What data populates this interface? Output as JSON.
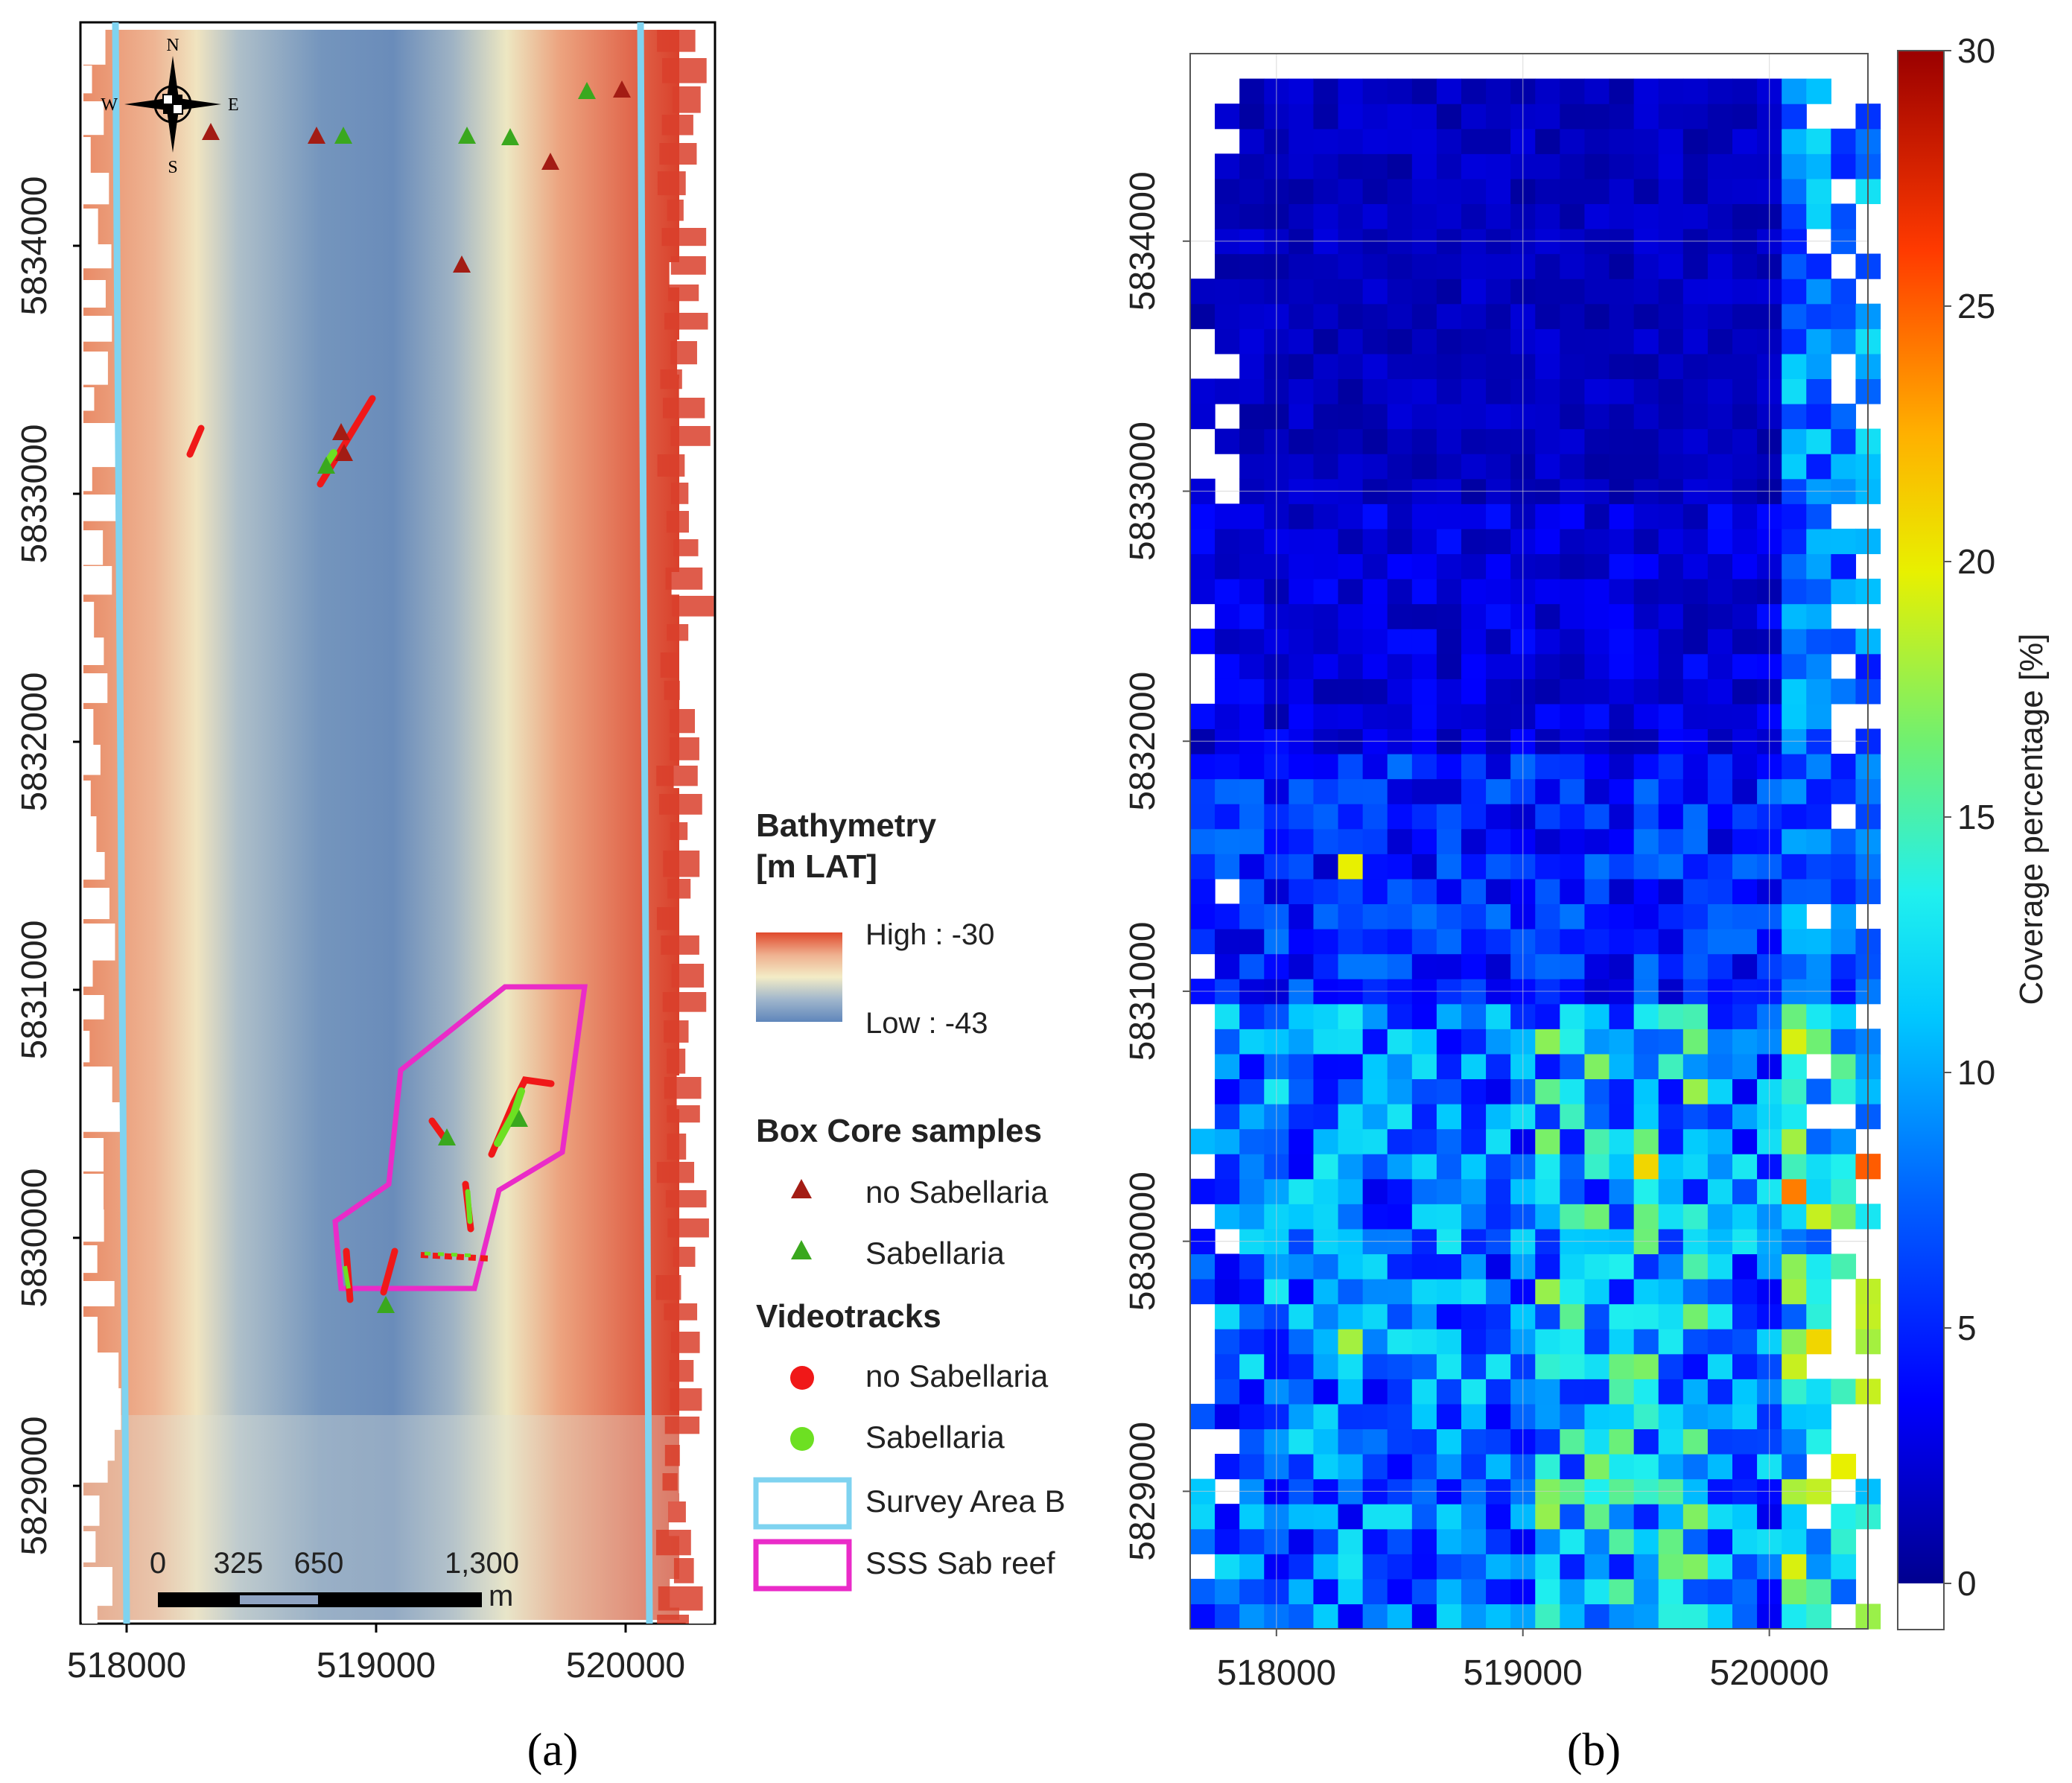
{
  "panel_a": {
    "label": "(a)",
    "compass": {
      "n": "N",
      "s": "S",
      "e": "E",
      "w": "W"
    },
    "scale_bar": {
      "ticks": [
        "0",
        "325",
        "650",
        "1,300"
      ],
      "unit": "m"
    },
    "y_ticks": [
      "5834000",
      "5833000",
      "5832000",
      "5831000",
      "5830000",
      "5829000"
    ],
    "x_ticks": [
      "518000",
      "519000",
      "520000"
    ],
    "colors": {
      "shallow": "#e0492c",
      "mid": "#f2e9c4",
      "deep": "#6688b8",
      "survey": "#7fd3f0",
      "reef": "#ea2bc8",
      "no_sab": "#a31c14",
      "sab": "#3aa81e",
      "track_no": "#f01818",
      "track_sab": "#6de022"
    }
  },
  "legend": {
    "bathymetry_title": [
      "Bathymetry",
      "[m LAT]"
    ],
    "high_label": "High : -30",
    "low_label": "Low : -43",
    "box_core_title": "Box Core samples",
    "box_core_items": [
      "no Sabellaria",
      "Sabellaria"
    ],
    "videotracks_title": "Videotracks",
    "videotrack_items": [
      "no Sabellaria",
      "Sabellaria"
    ],
    "survey_area_label": "Survey Area B",
    "reef_label": "SSS Sab reef"
  },
  "panel_b": {
    "label": "(b)",
    "y_ticks": [
      "5834000",
      "5833000",
      "5832000",
      "5831000",
      "5830000",
      "5829000"
    ],
    "x_ticks": [
      "518000",
      "519000",
      "520000"
    ],
    "colorbar_ticks": [
      "30",
      "25",
      "20",
      "15",
      "10",
      "5",
      "0"
    ],
    "colorbar_label": "Coverage percentage [%]"
  },
  "chart_data": {
    "type": "heatmap",
    "title": "",
    "xlabel": "",
    "ylabel": "",
    "colorbar_label": "Coverage percentage [%]",
    "x_range": [
      517650,
      520400
    ],
    "y_range": [
      5828450,
      5834750
    ],
    "cell_size_m": 100,
    "value_range": [
      0,
      30
    ],
    "x_ticks": [
      518000,
      519000,
      520000
    ],
    "y_ticks": [
      5829000,
      5830000,
      5831000,
      5832000,
      5833000,
      5834000
    ],
    "bands": [
      {
        "y_from": 5833000,
        "y_to": 5834750,
        "typical_coverage": 1.5,
        "east_edge_coverage": 9
      },
      {
        "y_from": 5832000,
        "y_to": 5833000,
        "typical_coverage": 2.5,
        "east_edge_coverage": 8
      },
      {
        "y_from": 5831000,
        "y_to": 5832000,
        "typical_coverage": 5,
        "east_edge_coverage": 8
      },
      {
        "y_from": 5828450,
        "y_to": 5831000,
        "typical_coverage": 8,
        "east_edge_coverage": 14
      }
    ],
    "highlights": [
      {
        "x": 518250,
        "y": 5831450,
        "value": 20
      },
      {
        "x": 519450,
        "y": 5830250,
        "value": 21
      },
      {
        "x": 520050,
        "y": 5830150,
        "value": 24
      },
      {
        "x": 520350,
        "y": 5830250,
        "value": 25
      },
      {
        "x": 518250,
        "y": 5829600,
        "value": 18
      },
      {
        "x": 520150,
        "y": 5829550,
        "value": 21
      },
      {
        "x": 520250,
        "y": 5829050,
        "value": 20
      }
    ]
  }
}
